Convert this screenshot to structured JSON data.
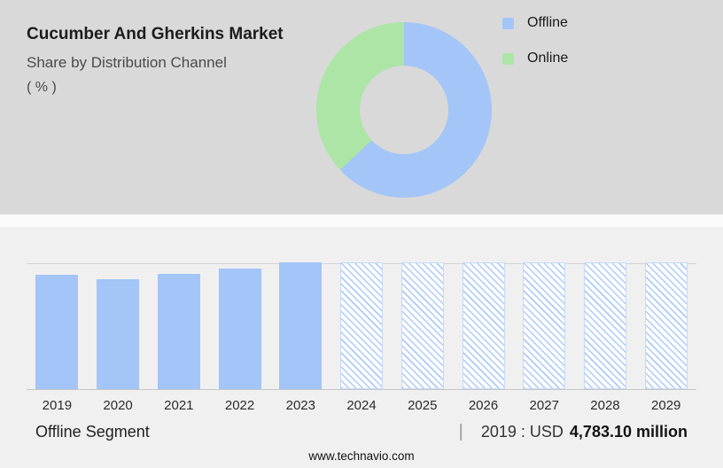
{
  "header": {
    "title": "Cucumber And Gherkins Market",
    "subtitle": "Share by Distribution Channel",
    "unit": "( % )"
  },
  "colors": {
    "top_background": "#d9d9d9",
    "bottom_background": "#f0f0f0",
    "offline_blue": "#a3c5f8",
    "online_green": "#ace5a5",
    "hatch_line": "#aecbf8",
    "donut_hole": "#d9d9d9"
  },
  "chart_data": [
    {
      "type": "pie",
      "donut": true,
      "title": "Share by Distribution Channel ( % )",
      "legend_position": "top-right",
      "series": [
        {
          "name": "Offline",
          "value": 63,
          "color": "#a3c5f8"
        },
        {
          "name": "Online",
          "value": 37,
          "color": "#ace5a5"
        }
      ]
    },
    {
      "type": "bar",
      "title": "Offline Segment",
      "categories": [
        "2019",
        "2020",
        "2021",
        "2022",
        "2023",
        "2024",
        "2025",
        "2026",
        "2027",
        "2028",
        "2029"
      ],
      "relative_heights_pct": [
        90,
        87,
        91,
        95,
        100,
        100,
        100,
        100,
        100,
        100,
        100
      ],
      "forecast_years": [
        "2024",
        "2025",
        "2026",
        "2027",
        "2028",
        "2029"
      ],
      "bar_color": "#a3c5f8",
      "annotation": "2019 : USD 4,783.10 million",
      "grid": false,
      "ylim": [
        0,
        100
      ]
    }
  ],
  "footer": {
    "segment_label": "Offline Segment",
    "separator": "|",
    "value_prefix": "2019 : USD",
    "value_bold": "4,783.10 million",
    "website": "www.technavio.com"
  }
}
